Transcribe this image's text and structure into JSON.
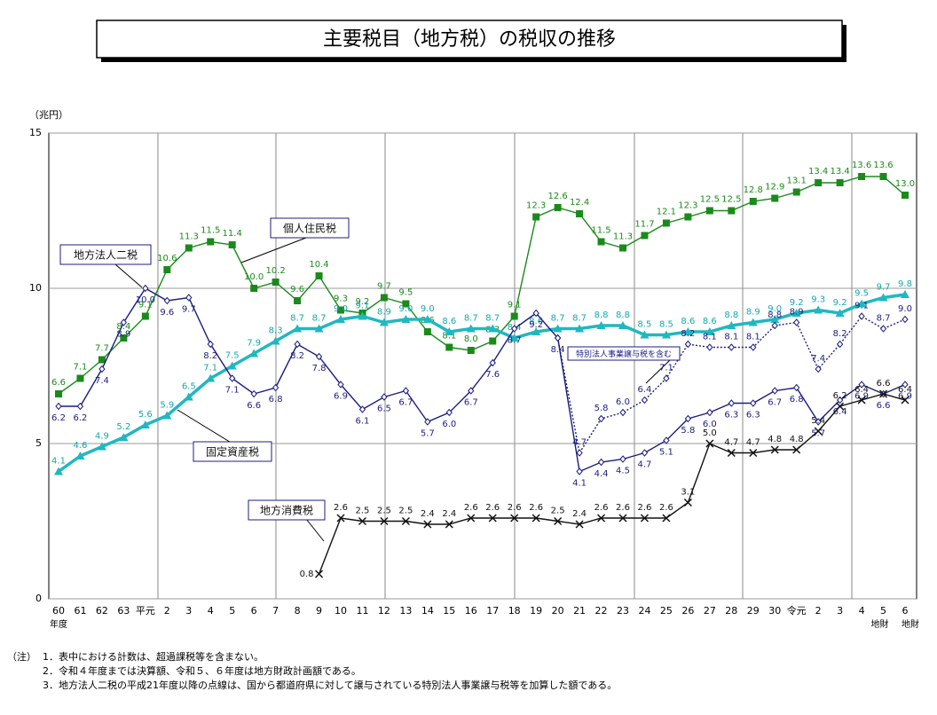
{
  "chart_data": {
    "type": "line",
    "title": "主要税目（地方税）の税収の推移",
    "y_unit": "（兆円）",
    "ylim": [
      0,
      15
    ],
    "yticks": [
      0,
      5,
      10,
      15
    ],
    "grid": true,
    "categories": [
      "60",
      "61",
      "62",
      "63",
      "平元",
      "2",
      "3",
      "4",
      "5",
      "6",
      "7",
      "8",
      "9",
      "10",
      "11",
      "12",
      "13",
      "14",
      "15",
      "16",
      "17",
      "18",
      "19",
      "20",
      "21",
      "22",
      "23",
      "24",
      "25",
      "26",
      "27",
      "28",
      "29",
      "30",
      "令元",
      "2",
      "3",
      "4",
      "5",
      "6"
    ],
    "category_notes": [
      "年度",
      null,
      null,
      null,
      null,
      null,
      null,
      null,
      null,
      null,
      null,
      null,
      null,
      null,
      null,
      null,
      null,
      null,
      null,
      null,
      null,
      null,
      null,
      null,
      null,
      null,
      null,
      null,
      null,
      null,
      null,
      null,
      null,
      null,
      null,
      null,
      null,
      null,
      "地財",
      "地財"
    ],
    "series": [
      {
        "name": "個人住民税",
        "color": "#1a8a1a",
        "marker": "square",
        "values": [
          6.6,
          7.1,
          7.7,
          8.4,
          9.1,
          10.6,
          11.3,
          11.5,
          11.4,
          10.0,
          10.2,
          9.6,
          10.4,
          9.3,
          9.2,
          9.7,
          9.5,
          8.6,
          8.1,
          8.0,
          8.3,
          9.1,
          12.3,
          12.6,
          12.4,
          11.5,
          11.3,
          11.7,
          12.1,
          12.3,
          12.5,
          12.5,
          12.8,
          12.9,
          13.1,
          13.4,
          13.4,
          13.6,
          13.6,
          13.0
        ],
        "value_labels": [
          "6.6",
          "7.1",
          "7.7",
          "8.4",
          "9.1",
          "10.6",
          "11.3",
          "11.5",
          "11.4",
          "10.0",
          "10.2",
          "9.6",
          "10.4",
          "9.3",
          "9.2",
          "9.7",
          "9.5",
          "8.6",
          "8.1",
          "8.0",
          "8.3",
          "9.1",
          "12.3",
          "12.6",
          "12.4",
          "11.5",
          "11.3",
          "11.7",
          "12.1",
          "12.3",
          "12.5",
          "12.5",
          "12.8",
          "12.9",
          "13.1",
          "13.4",
          "13.4",
          "13.6",
          "13.6",
          "13.0"
        ]
      },
      {
        "name": "固定資産税",
        "color": "#1fb8c0",
        "marker": "triangle",
        "values": [
          4.1,
          4.6,
          4.9,
          5.2,
          5.6,
          5.9,
          6.5,
          7.1,
          7.5,
          7.9,
          8.3,
          8.7,
          8.7,
          9.0,
          9.1,
          8.9,
          9.0,
          9.0,
          8.6,
          8.7,
          8.7,
          8.4,
          8.6,
          8.7,
          8.7,
          8.8,
          8.8,
          8.5,
          8.5,
          8.6,
          8.6,
          8.8,
          8.9,
          9.0,
          9.2,
          9.3,
          9.2,
          9.5,
          9.7,
          9.8
        ],
        "value_labels": [
          "4.1",
          "4.6",
          "4.9",
          "5.2",
          "5.6",
          "5.9",
          "6.5",
          "7.1",
          "7.5",
          "7.9",
          "8.3",
          "8.7",
          "8.7",
          "9.0",
          "9.1",
          "8.9",
          "9.0",
          "9.0",
          "8.6",
          "8.7",
          "8.7",
          "8.4",
          "8.6",
          "8.7",
          "8.7",
          "8.8",
          "8.8",
          "8.5",
          "8.5",
          "8.6",
          "8.6",
          "8.8",
          "8.9",
          "9.0",
          "9.2",
          "9.3",
          "9.2",
          "9.5",
          "9.7",
          "9.8"
        ]
      },
      {
        "name": "地方法人二税",
        "color": "#1c1c80",
        "marker": "diamond",
        "values": [
          6.2,
          6.2,
          7.4,
          8.9,
          10.0,
          9.6,
          9.7,
          8.2,
          7.1,
          6.6,
          6.8,
          8.2,
          7.8,
          6.9,
          6.1,
          6.5,
          6.7,
          5.7,
          6.0,
          6.7,
          7.6,
          8.7,
          9.2,
          8.4,
          4.1,
          4.4,
          4.5,
          4.7,
          5.1,
          5.8,
          6.0,
          6.3,
          6.3,
          6.7,
          6.8,
          5.7,
          6.4,
          6.9,
          6.6,
          6.9
        ],
        "value_labels": [
          "6.2",
          "6.2",
          "7.4",
          "8.9",
          "10.0",
          "9.6",
          "9.7",
          "8.2",
          "7.1",
          "6.6",
          "6.8",
          "8.2",
          "7.8",
          "6.9",
          "6.1",
          "6.5",
          "6.7",
          "5.7",
          "6.0",
          "6.7",
          "7.6",
          "8.7",
          "9.2",
          "8.4",
          "4.1",
          "4.4",
          "4.5",
          "4.7",
          "5.1",
          "5.8",
          "6.0",
          "6.3",
          "6.3",
          "6.7",
          "6.8",
          "5.7",
          "6.4",
          "6.9",
          "6.6",
          "6.9"
        ]
      },
      {
        "name": "特別法人事業譲与税を含む",
        "color": "#1c1c80",
        "marker": "diamond",
        "dash": true,
        "values": [
          null,
          null,
          null,
          null,
          null,
          null,
          null,
          null,
          null,
          null,
          null,
          null,
          null,
          null,
          null,
          null,
          null,
          null,
          null,
          null,
          null,
          null,
          null,
          8.4,
          4.7,
          5.8,
          6.0,
          6.4,
          7.1,
          8.2,
          8.1,
          8.1,
          8.1,
          8.8,
          8.9,
          7.4,
          8.2,
          9.1,
          8.7,
          9.0
        ],
        "value_labels": [
          null,
          null,
          null,
          null,
          null,
          null,
          null,
          null,
          null,
          null,
          null,
          null,
          null,
          null,
          null,
          null,
          null,
          null,
          null,
          null,
          null,
          null,
          null,
          null,
          "4.7",
          "5.8",
          "6.0",
          "6.4",
          "7.1",
          "8.2",
          "8.1",
          "8.1",
          "8.1",
          "8.8",
          "8.9",
          "7.4",
          "8.2",
          "9.1",
          "8.7",
          "9.0"
        ]
      },
      {
        "name": "地方消費税",
        "color": "#111111",
        "marker": "x",
        "values": [
          null,
          null,
          null,
          null,
          null,
          null,
          null,
          null,
          null,
          null,
          null,
          null,
          0.8,
          2.6,
          2.5,
          2.5,
          2.5,
          2.4,
          2.4,
          2.6,
          2.6,
          2.6,
          2.6,
          2.5,
          2.4,
          2.6,
          2.6,
          2.6,
          2.6,
          3.1,
          5.0,
          4.7,
          4.7,
          4.8,
          4.8,
          5.4,
          6.2,
          6.4,
          6.6,
          6.4
        ],
        "value_labels": [
          null,
          null,
          null,
          null,
          null,
          null,
          null,
          null,
          null,
          null,
          null,
          null,
          "0.8",
          "2.6",
          "2.5",
          "2.5",
          "2.5",
          "2.4",
          "2.4",
          "2.6",
          "2.6",
          "2.6",
          "2.6",
          "2.5",
          "2.4",
          "2.6",
          "2.6",
          "2.6",
          "2.6",
          "3.1",
          "5.0",
          "4.7",
          "4.7",
          "4.8",
          "4.8",
          "5.4",
          "6.2",
          "6.4",
          "6.6",
          "6.4"
        ]
      }
    ],
    "notes_label": "（注）",
    "notes": [
      "1．表中における計数は、超過課税等を含まない。",
      "2．令和４年度までは決算額、令和５、６年度は地方財政計画額である。",
      "3．地方法人二税の平成21年度以降の点線は、国から都道府県に対して譲与されている特別法人事業譲与税等を加算した額である。"
    ]
  }
}
